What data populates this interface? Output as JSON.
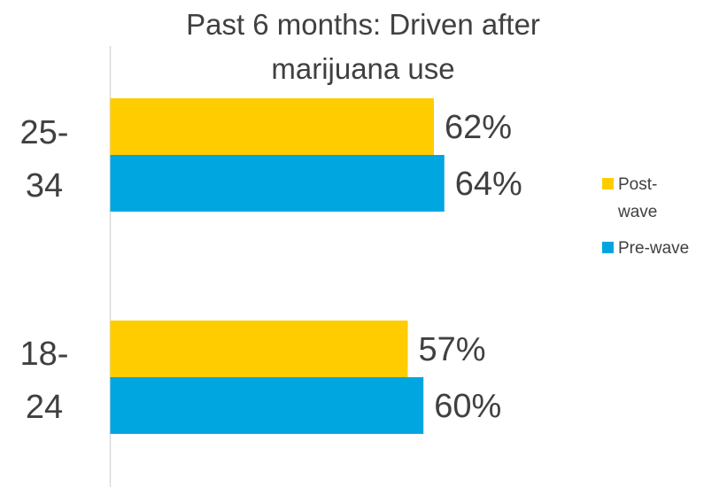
{
  "chart_data": {
    "type": "bar",
    "orientation": "horizontal",
    "title_lines": [
      "Past 6 months: Driven after",
      "marijuana use"
    ],
    "categories": [
      {
        "name": "25-34",
        "lines": [
          "25-",
          "34"
        ]
      },
      {
        "name": "18-24",
        "lines": [
          "18-",
          "24"
        ]
      }
    ],
    "series": [
      {
        "name": "Post-wave",
        "name_lines": [
          "Post-",
          "wave"
        ],
        "color": "#FFCC00",
        "values": [
          62,
          57
        ],
        "labels": [
          "62%",
          "57%"
        ]
      },
      {
        "name": "Pre-wave",
        "name_lines": [
          "Pre-wave"
        ],
        "color": "#00A6E0",
        "values": [
          64,
          60
        ],
        "labels": [
          "64%",
          "60%"
        ]
      }
    ],
    "value_unit": "%",
    "xlim": [
      0,
      100
    ],
    "grid": false,
    "legend_position": "right"
  }
}
